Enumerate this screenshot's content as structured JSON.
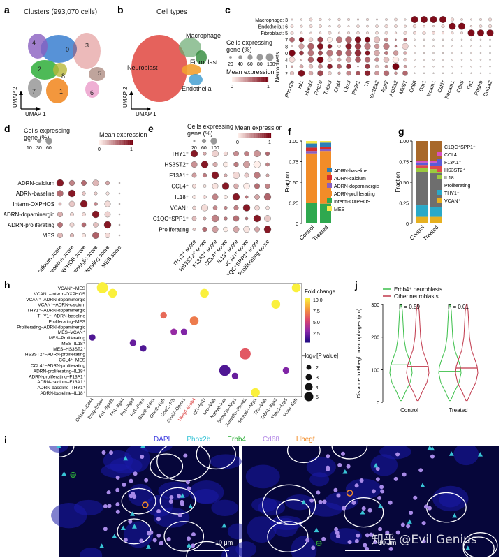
{
  "panel_labels": {
    "a": "a",
    "b": "b",
    "c": "c",
    "d": "d",
    "e": "e",
    "f": "f",
    "g": "g",
    "h": "h",
    "j": "j",
    "i": "i"
  },
  "panel_a": {
    "title": "Clusters (993,070 cells)",
    "umap_x": "UMAP 1",
    "umap_y": "UMAP 2",
    "cluster_labels": [
      "0",
      "1",
      "2",
      "3",
      "4",
      "5",
      "6",
      "7",
      "8"
    ],
    "cluster_colors": [
      "#3a7fd0",
      "#f28c28",
      "#2fae3a",
      "#c83a3a",
      "#8a5fc0",
      "#8b5a4a",
      "#e47ab8",
      "#8a8a8a",
      "#b8b83a"
    ]
  },
  "panel_b": {
    "title": "Cell types",
    "umap_x": "UMAP 1",
    "umap_y": "UMAP 2",
    "labels": [
      "Neuroblast",
      "Macrophage",
      "Fibroblast",
      "Endothelial"
    ]
  },
  "panel_c": {
    "row_labels": [
      "Macrophage: 3",
      "Endothelial: 6",
      "Fibroblast: 5",
      "7",
      "8",
      "0",
      "4",
      "1",
      "2"
    ],
    "group_label": "Neuroblasts",
    "genes": [
      "Phox2b",
      "Isl1",
      "Hand2",
      "Peg10",
      "Tubb3",
      "Chd4",
      "Cbx3",
      "Pik3r1",
      "Th",
      "Slc18a2",
      "Agtr2",
      "Atp2a2",
      "Mki67",
      "Cd68",
      "Gm1",
      "Vcam1",
      "Csf1r",
      "Pecam1",
      "Cdh5",
      "Fn1",
      "Pdgfrb",
      "Col1a2"
    ],
    "size_legend_title": "Cells expressing gene (%)",
    "size_legend_ticks": [
      "20",
      "40",
      "60",
      "80",
      "100"
    ],
    "color_legend_title": "Mean expression",
    "color_legend_ticks": [
      "0",
      "1"
    ]
  },
  "panel_d": {
    "rows": [
      "ADRN-calcium",
      "ADRN-baseline",
      "Interm-OXPHOS",
      "ADRN-dopaminergic",
      "ADRN-proliferating",
      "MES"
    ],
    "cols": [
      "ADRN-calcium score",
      "ADRN-baseline score",
      "Interm-OXPHOS score",
      "ADRN-dopaminergic score",
      "ADRN-proliferating score",
      "MES score"
    ],
    "size_legend_title": "Cells expressing gene (%)",
    "size_legend_ticks": [
      "10",
      "30",
      "60"
    ],
    "color_legend_title": "Mean expression",
    "color_legend_ticks": [
      "0",
      "1"
    ]
  },
  "panel_e": {
    "rows": [
      "THY1⁺",
      "HS3ST2⁺",
      "F13A1⁺",
      "CCL4⁺",
      "IL18⁺",
      "VCAN⁺",
      "C1QC⁺SPP1⁺",
      "Proliferating"
    ],
    "cols": [
      "THY1⁺ score",
      "HS3ST2⁺ score",
      "F13A1⁺ score",
      "CCL4⁺ score",
      "IL18⁺ score",
      "VCAN⁺ score",
      "C1QC⁺SPP1⁺ score",
      "Proliferating score"
    ],
    "size_legend_title": "Cells expressing gene (%)",
    "size_legend_ticks": [
      "20",
      "60",
      "100"
    ],
    "color_legend_title": "Mean expression",
    "color_legend_ticks": [
      "0",
      "1"
    ]
  },
  "chart_data": [
    {
      "id": "f",
      "type": "bar",
      "stacked": true,
      "categories": [
        "Control",
        "Treated"
      ],
      "ylabel": "Fraction",
      "ylim": [
        0,
        1
      ],
      "yticks": [
        "0",
        "0.25",
        "0.50",
        "0.75",
        "1.00"
      ],
      "series": [
        {
          "name": "Interm-OXPHOS",
          "color": "#2fa84f",
          "values": [
            0.25,
            0.24
          ]
        },
        {
          "name": "ADRN-proliferating",
          "color": "#f28c28",
          "values": [
            0.6,
            0.64
          ]
        },
        {
          "name": "ADRN-dopaminergic",
          "color": "#8a5fc0",
          "values": [
            0.03,
            0.02
          ]
        },
        {
          "name": "ADRN-calcium",
          "color": "#d62d2d",
          "values": [
            0.04,
            0.03
          ]
        },
        {
          "name": "ADRN-baseline",
          "color": "#2c7fb8",
          "values": [
            0.05,
            0.05
          ]
        },
        {
          "name": "MES",
          "color": "#f5e84a",
          "values": [
            0.03,
            0.02
          ]
        }
      ],
      "legend_order": [
        "ADRN-baseline",
        "ADRN-calcium",
        "ADRN-dopaminergic",
        "ADRN-proliferating",
        "Interm-OXPHOS",
        "MES"
      ]
    },
    {
      "id": "g",
      "type": "bar",
      "stacked": true,
      "categories": [
        "Control",
        "Treated"
      ],
      "ylabel": "Fraction",
      "ylim": [
        0,
        1
      ],
      "yticks": [
        "0",
        "0.25",
        "0.50",
        "0.75",
        "1.00"
      ],
      "series": [
        {
          "name": "VCAN⁺",
          "color": "#e6b020",
          "values": [
            0.08,
            0.08
          ]
        },
        {
          "name": "THY1⁺",
          "color": "#2aa9c8",
          "values": [
            0.14,
            0.12
          ]
        },
        {
          "name": "Proliferating",
          "color": "#6e6e6e",
          "values": [
            0.4,
            0.41
          ]
        },
        {
          "name": "IL18⁺",
          "color": "#9bc93e",
          "values": [
            0.05,
            0.05
          ]
        },
        {
          "name": "HS3ST2⁺",
          "color": "#e04a4a",
          "values": [
            0.04,
            0.04
          ]
        },
        {
          "name": "F13A1⁺",
          "color": "#5b5bd6",
          "values": [
            0.03,
            0.04
          ]
        },
        {
          "name": "CCL4⁺",
          "color": "#d94fc0",
          "values": [
            0.02,
            0.02
          ]
        },
        {
          "name": "C1QC⁺SPP1⁺",
          "color": "#a8682a",
          "values": [
            0.24,
            0.24
          ]
        }
      ],
      "legend_order": [
        "C1QC⁺SPP1⁺",
        "CCL4⁺",
        "F13A1⁺",
        "HS3ST2⁺",
        "IL18⁺",
        "Proliferating",
        "THY1⁺",
        "VCAN⁺"
      ]
    },
    {
      "id": "h",
      "type": "scatter",
      "y_categories": [
        "ADRN-baseline–IL18⁺",
        "ADRN-baseline–THY1⁺",
        "ADRN-calcium–F13A1⁺",
        "ADRN-proliferating–F13A1⁺",
        "ADRN-proliferating–IL18⁺",
        "CCL4⁺–ADRN-proliferating",
        "CCL4⁺–MES",
        "HS3ST2⁺–ADRN-proliferating",
        "MES–HS3ST2⁺",
        "MES–IL18⁺",
        "MES–Proliferating",
        "MES–VCAN⁺",
        "Proliferating–ADRN-dopaminergic",
        "Proliferating–MES",
        "THY1⁺–ADRN-baseline",
        "THY1⁺–ADRN-dopaminergic",
        "VCAN⁺–ADRN-calcium",
        "VCAN⁺–ADRN-dopaminergic",
        "VCAN⁺–Interm-OXPHOS",
        "VCAN⁺–MES"
      ],
      "x_categories": [
        "Col1a1–Cd44",
        "Ereg–Erbb4",
        "Fn1–Itga2b",
        "Fn1–Itga4",
        "Fn1–Itgb9",
        "Fn1–Plaur",
        "Gnai2–Edn1",
        "Gnai2–Egfr",
        "Gnai2–F2r",
        "Gnai2–Oprm1",
        "Hbegf–Erbb4",
        "Igf1–Igf1r",
        "Lep–Vldlr",
        "Nampt–Insr",
        "Sema3a–Nrp1",
        "Sema3a–Plxnd1",
        "Sema6d–Nrp1",
        "Tfrc–Vldlr",
        "Thbs1–Itga3",
        "Thbs1–Lrp5",
        "Vcan–Egfr"
      ],
      "highlight_x": "Hbegf–Erbb4",
      "color_legend_title": "Fold change",
      "color_legend_ticks": [
        "2.5",
        "5.0",
        "7.5",
        "10.0"
      ],
      "size_legend_title": "–log₁₀[P value]",
      "size_legend_ticks": [
        "2",
        "3",
        "4",
        "5"
      ],
      "points": [
        {
          "x": "Col1a1–Cd44",
          "y": "MES–Proliferating",
          "fc": 2.0,
          "p": 2
        },
        {
          "x": "Ereg–Erbb4",
          "y": "VCAN⁺–MES",
          "fc": 10.0,
          "p": 4
        },
        {
          "x": "Fn1–Itga2b",
          "y": "VCAN⁺–Interm-OXPHOS",
          "fc": 10.0,
          "p": 3
        },
        {
          "x": "Fn1–Itgb9",
          "y": "MES–IL18⁺",
          "fc": 2.5,
          "p": 2
        },
        {
          "x": "Fn1–Plaur",
          "y": "MES–HS3ST2⁺",
          "fc": 2.0,
          "p": 2
        },
        {
          "x": "Gnai2–Egfr",
          "y": "THY1⁺–ADRN-baseline",
          "fc": 6.5,
          "p": 2
        },
        {
          "x": "Gnai2–F2r",
          "y": "MES–VCAN⁺",
          "fc": 3.5,
          "p": 2
        },
        {
          "x": "Gnai2–Oprm1",
          "y": "MES–VCAN⁺",
          "fc": 3.0,
          "p": 2
        },
        {
          "x": "Hbegf–Erbb4",
          "y": "Proliferating–MES",
          "fc": 7.0,
          "p": 3
        },
        {
          "x": "Igf1–Igf1r",
          "y": "VCAN⁺–Interm-OXPHOS",
          "fc": 10.0,
          "p": 3
        },
        {
          "x": "Nampt–Insr",
          "y": "ADRN-proliferating–IL18⁺",
          "fc": 2.0,
          "p": 4
        },
        {
          "x": "Sema3a–Nrp1",
          "y": "ADRN-proliferating–F13A1⁺",
          "fc": 2.5,
          "p": 2
        },
        {
          "x": "Sema3a–Plxnd1",
          "y": "HS3ST2⁺–ADRN-proliferating",
          "fc": 6.0,
          "p": 4
        },
        {
          "x": "Sema6d–Nrp1",
          "y": "ADRN-baseline–IL18⁺",
          "fc": 10.0,
          "p": 3
        },
        {
          "x": "Thbs1–Itga3",
          "y": "VCAN⁺–ADRN-calcium",
          "fc": 10.0,
          "p": 3
        },
        {
          "x": "Thbs1–Lrp5",
          "y": "ADRN-proliferating–IL18⁺",
          "fc": 3.0,
          "p": 2
        },
        {
          "x": "Vcan–Egfr",
          "y": "VCAN⁺–MES",
          "fc": 10.0,
          "p": 3
        }
      ]
    },
    {
      "id": "j",
      "type": "violin",
      "categories": [
        "Control",
        "Treated"
      ],
      "ylabel": "Distance to Hbegf⁺ macrophages (μm)",
      "ylim": [
        0,
        300
      ],
      "yticks": [
        "0",
        "100",
        "200",
        "300"
      ],
      "series": [
        {
          "name": "Erbb4⁺ neuroblasts",
          "color": "#3bbf4a",
          "medians": [
            115,
            95
          ]
        },
        {
          "name": "Other neuroblasts",
          "color": "#c0384b",
          "medians": [
            110,
            105
          ]
        }
      ],
      "pvalues": [
        "P = 0.59",
        "P = 0.01"
      ]
    }
  ],
  "panel_i": {
    "channel_labels": [
      {
        "text": "DAPI",
        "color": "#3f3fe0"
      },
      {
        "text": "Phox2b",
        "color": "#38c4d6"
      },
      {
        "text": "Erbb4",
        "color": "#2fae3a"
      },
      {
        "text": "Cd68",
        "color": "#b48ae6"
      },
      {
        "text": "Hbegf",
        "color": "#f28c28"
      }
    ],
    "scale_bar_left": "10 μm",
    "scale_bar_right": "10 μm"
  },
  "watermark": "知乎 @Evil Genius"
}
